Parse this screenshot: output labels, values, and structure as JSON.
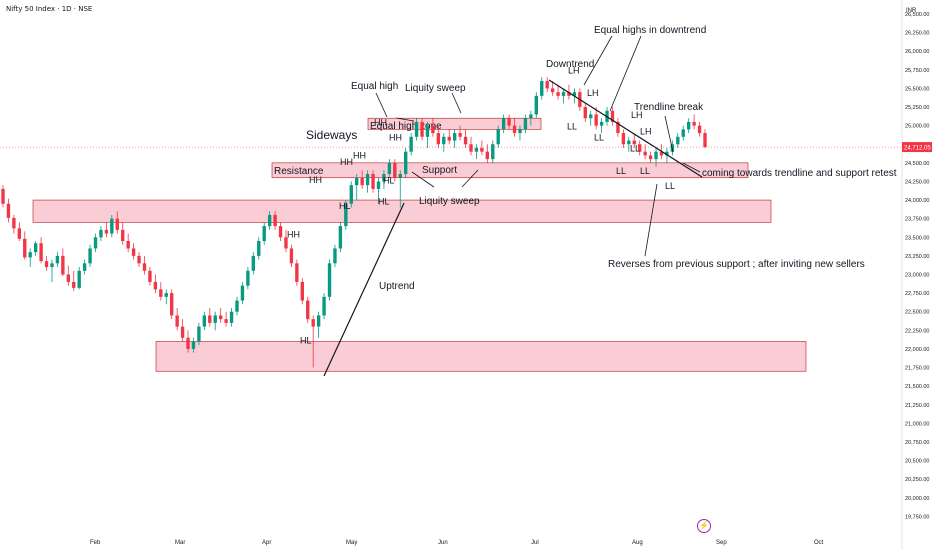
{
  "title": "Nifty 50 Index · 1D · NSE",
  "currency": "INR",
  "last_price_label": "24,712.05",
  "colors": {
    "up": "#089981",
    "down": "#f23645",
    "zone_fill": "#f8bbc8",
    "zone_stroke": "#b71c1c",
    "price_tag": "#f23645"
  },
  "logo_icon": "tradingview-flash-icon",
  "chart_data": {
    "type": "candlestick",
    "ylim": [
      19500,
      26500
    ],
    "y_ticks": [
      "26,500.00",
      "26,250.00",
      "26,000.00",
      "25,750.00",
      "25,500.00",
      "25,250.00",
      "25,000.00",
      "24,750.00",
      "24,500.00",
      "24,250.00",
      "24,000.00",
      "23,750.00",
      "23,500.00",
      "23,250.00",
      "23,000.00",
      "22,750.00",
      "22,500.00",
      "22,250.00",
      "22,000.00",
      "21,750.00",
      "21,500.00",
      "21,250.00",
      "21,000.00",
      "20,750.00",
      "20,500.00",
      "20,250.00",
      "20,000.00",
      "19,750.00"
    ],
    "x_labels": [
      "Feb",
      "Mar",
      "Apr",
      "May",
      "Jun",
      "Jul",
      "Aug",
      "Sep",
      "Oct"
    ],
    "last_price": 24712.05,
    "candles": [
      {
        "o": 24150,
        "h": 24200,
        "l": 23900,
        "c": 23950
      },
      {
        "o": 23950,
        "h": 24020,
        "l": 23700,
        "c": 23760
      },
      {
        "o": 23760,
        "h": 23800,
        "l": 23550,
        "c": 23620
      },
      {
        "o": 23620,
        "h": 23700,
        "l": 23450,
        "c": 23480
      },
      {
        "o": 23480,
        "h": 23580,
        "l": 23200,
        "c": 23230
      },
      {
        "o": 23230,
        "h": 23350,
        "l": 23100,
        "c": 23300
      },
      {
        "o": 23300,
        "h": 23450,
        "l": 23250,
        "c": 23420
      },
      {
        "o": 23420,
        "h": 23500,
        "l": 23150,
        "c": 23180
      },
      {
        "o": 23180,
        "h": 23250,
        "l": 23050,
        "c": 23100
      },
      {
        "o": 23100,
        "h": 23200,
        "l": 22900,
        "c": 23150
      },
      {
        "o": 23150,
        "h": 23300,
        "l": 23100,
        "c": 23250
      },
      {
        "o": 23250,
        "h": 23350,
        "l": 22980,
        "c": 23000
      },
      {
        "o": 23000,
        "h": 23120,
        "l": 22850,
        "c": 22900
      },
      {
        "o": 22900,
        "h": 23050,
        "l": 22780,
        "c": 22820
      },
      {
        "o": 22820,
        "h": 23100,
        "l": 22800,
        "c": 23050
      },
      {
        "o": 23050,
        "h": 23200,
        "l": 23000,
        "c": 23150
      },
      {
        "o": 23150,
        "h": 23400,
        "l": 23100,
        "c": 23350
      },
      {
        "o": 23350,
        "h": 23550,
        "l": 23300,
        "c": 23500
      },
      {
        "o": 23500,
        "h": 23650,
        "l": 23450,
        "c": 23600
      },
      {
        "o": 23600,
        "h": 23700,
        "l": 23500,
        "c": 23550
      },
      {
        "o": 23550,
        "h": 23800,
        "l": 23500,
        "c": 23750
      },
      {
        "o": 23750,
        "h": 23850,
        "l": 23550,
        "c": 23600
      },
      {
        "o": 23600,
        "h": 23700,
        "l": 23400,
        "c": 23450
      },
      {
        "o": 23450,
        "h": 23550,
        "l": 23300,
        "c": 23350
      },
      {
        "o": 23350,
        "h": 23420,
        "l": 23200,
        "c": 23250
      },
      {
        "o": 23250,
        "h": 23300,
        "l": 23100,
        "c": 23150
      },
      {
        "o": 23150,
        "h": 23250,
        "l": 23000,
        "c": 23050
      },
      {
        "o": 23050,
        "h": 23100,
        "l": 22850,
        "c": 22900
      },
      {
        "o": 22900,
        "h": 23000,
        "l": 22750,
        "c": 22800
      },
      {
        "o": 22800,
        "h": 22900,
        "l": 22650,
        "c": 22700
      },
      {
        "o": 22700,
        "h": 22800,
        "l": 22600,
        "c": 22750
      },
      {
        "o": 22750,
        "h": 22800,
        "l": 22400,
        "c": 22450
      },
      {
        "o": 22450,
        "h": 22550,
        "l": 22250,
        "c": 22300
      },
      {
        "o": 22300,
        "h": 22400,
        "l": 22100,
        "c": 22150
      },
      {
        "o": 22150,
        "h": 22250,
        "l": 21950,
        "c": 22000
      },
      {
        "o": 22000,
        "h": 22150,
        "l": 21950,
        "c": 22100
      },
      {
        "o": 22100,
        "h": 22350,
        "l": 22050,
        "c": 22300
      },
      {
        "o": 22300,
        "h": 22500,
        "l": 22250,
        "c": 22450
      },
      {
        "o": 22450,
        "h": 22550,
        "l": 22300,
        "c": 22350
      },
      {
        "o": 22350,
        "h": 22500,
        "l": 22250,
        "c": 22450
      },
      {
        "o": 22450,
        "h": 22550,
        "l": 22350,
        "c": 22400
      },
      {
        "o": 22400,
        "h": 22500,
        "l": 22300,
        "c": 22350
      },
      {
        "o": 22350,
        "h": 22550,
        "l": 22300,
        "c": 22500
      },
      {
        "o": 22500,
        "h": 22700,
        "l": 22450,
        "c": 22650
      },
      {
        "o": 22650,
        "h": 22900,
        "l": 22600,
        "c": 22850
      },
      {
        "o": 22850,
        "h": 23100,
        "l": 22800,
        "c": 23050
      },
      {
        "o": 23050,
        "h": 23300,
        "l": 23000,
        "c": 23250
      },
      {
        "o": 23250,
        "h": 23500,
        "l": 23200,
        "c": 23450
      },
      {
        "o": 23450,
        "h": 23700,
        "l": 23400,
        "c": 23650
      },
      {
        "o": 23650,
        "h": 23850,
        "l": 23600,
        "c": 23800
      },
      {
        "o": 23800,
        "h": 23850,
        "l": 23600,
        "c": 23650
      },
      {
        "o": 23650,
        "h": 23700,
        "l": 23450,
        "c": 23500
      },
      {
        "o": 23500,
        "h": 23600,
        "l": 23300,
        "c": 23350
      },
      {
        "o": 23350,
        "h": 23400,
        "l": 23100,
        "c": 23150
      },
      {
        "o": 23150,
        "h": 23200,
        "l": 22850,
        "c": 22900
      },
      {
        "o": 22900,
        "h": 22950,
        "l": 22600,
        "c": 22650
      },
      {
        "o": 22650,
        "h": 22700,
        "l": 22350,
        "c": 22400
      },
      {
        "o": 22400,
        "h": 22450,
        "l": 21750,
        "c": 22300
      },
      {
        "o": 22300,
        "h": 22500,
        "l": 22150,
        "c": 22450
      },
      {
        "o": 22450,
        "h": 22750,
        "l": 22400,
        "c": 22700
      },
      {
        "o": 22700,
        "h": 23200,
        "l": 22650,
        "c": 23150
      },
      {
        "o": 23150,
        "h": 23400,
        "l": 23100,
        "c": 23350
      },
      {
        "o": 23350,
        "h": 23700,
        "l": 23300,
        "c": 23650
      },
      {
        "o": 23650,
        "h": 24000,
        "l": 23600,
        "c": 23950
      },
      {
        "o": 23950,
        "h": 24250,
        "l": 23900,
        "c": 24200
      },
      {
        "o": 24200,
        "h": 24350,
        "l": 24000,
        "c": 24300
      },
      {
        "o": 24300,
        "h": 24400,
        "l": 24150,
        "c": 24200
      },
      {
        "o": 24200,
        "h": 24400,
        "l": 24100,
        "c": 24350
      },
      {
        "o": 24350,
        "h": 24400,
        "l": 24100,
        "c": 24150
      },
      {
        "o": 24150,
        "h": 24300,
        "l": 23950,
        "c": 24250
      },
      {
        "o": 24250,
        "h": 24400,
        "l": 24150,
        "c": 24350
      },
      {
        "o": 24350,
        "h": 24550,
        "l": 24300,
        "c": 24500
      },
      {
        "o": 24500,
        "h": 24550,
        "l": 24250,
        "c": 24300
      },
      {
        "o": 24300,
        "h": 24400,
        "l": 23900,
        "c": 24350
      },
      {
        "o": 24350,
        "h": 24700,
        "l": 24300,
        "c": 24650
      },
      {
        "o": 24650,
        "h": 24900,
        "l": 24600,
        "c": 24850
      },
      {
        "o": 24850,
        "h": 25100,
        "l": 24800,
        "c": 25050
      },
      {
        "o": 25050,
        "h": 25100,
        "l": 24800,
        "c": 24850
      },
      {
        "o": 24850,
        "h": 25050,
        "l": 24700,
        "c": 25000
      },
      {
        "o": 25000,
        "h": 25100,
        "l": 24850,
        "c": 24900
      },
      {
        "o": 24900,
        "h": 25000,
        "l": 24700,
        "c": 24750
      },
      {
        "o": 24750,
        "h": 24900,
        "l": 24650,
        "c": 24850
      },
      {
        "o": 24850,
        "h": 24950,
        "l": 24750,
        "c": 24800
      },
      {
        "o": 24800,
        "h": 24950,
        "l": 24700,
        "c": 24900
      },
      {
        "o": 24900,
        "h": 25000,
        "l": 24800,
        "c": 24850
      },
      {
        "o": 24850,
        "h": 24950,
        "l": 24700,
        "c": 24750
      },
      {
        "o": 24750,
        "h": 24850,
        "l": 24600,
        "c": 24650
      },
      {
        "o": 24650,
        "h": 24750,
        "l": 24550,
        "c": 24700
      },
      {
        "o": 24700,
        "h": 24800,
        "l": 24600,
        "c": 24650
      },
      {
        "o": 24650,
        "h": 24750,
        "l": 24500,
        "c": 24550
      },
      {
        "o": 24550,
        "h": 24800,
        "l": 24500,
        "c": 24750
      },
      {
        "o": 24750,
        "h": 25000,
        "l": 24700,
        "c": 24950
      },
      {
        "o": 24950,
        "h": 25150,
        "l": 24900,
        "c": 25100
      },
      {
        "o": 25100,
        "h": 25150,
        "l": 24950,
        "c": 25000
      },
      {
        "o": 25000,
        "h": 25100,
        "l": 24850,
        "c": 24900
      },
      {
        "o": 24900,
        "h": 25000,
        "l": 24800,
        "c": 24950
      },
      {
        "o": 24950,
        "h": 25150,
        "l": 24900,
        "c": 25100
      },
      {
        "o": 25100,
        "h": 25200,
        "l": 25000,
        "c": 25150
      },
      {
        "o": 25150,
        "h": 25450,
        "l": 25100,
        "c": 25400
      },
      {
        "o": 25400,
        "h": 25650,
        "l": 25350,
        "c": 25600
      },
      {
        "o": 25600,
        "h": 25650,
        "l": 25450,
        "c": 25500
      },
      {
        "o": 25500,
        "h": 25600,
        "l": 25400,
        "c": 25450
      },
      {
        "o": 25450,
        "h": 25550,
        "l": 25350,
        "c": 25400
      },
      {
        "o": 25400,
        "h": 25500,
        "l": 25300,
        "c": 25450
      },
      {
        "o": 25450,
        "h": 25550,
        "l": 25350,
        "c": 25400
      },
      {
        "o": 25400,
        "h": 25500,
        "l": 25300,
        "c": 25450
      },
      {
        "o": 25450,
        "h": 25500,
        "l": 25200,
        "c": 25250
      },
      {
        "o": 25250,
        "h": 25300,
        "l": 25050,
        "c": 25100
      },
      {
        "o": 25100,
        "h": 25200,
        "l": 25000,
        "c": 25150
      },
      {
        "o": 25150,
        "h": 25250,
        "l": 24950,
        "c": 25000
      },
      {
        "o": 25000,
        "h": 25100,
        "l": 24900,
        "c": 25050
      },
      {
        "o": 25050,
        "h": 25250,
        "l": 25000,
        "c": 25200
      },
      {
        "o": 25200,
        "h": 25250,
        "l": 25000,
        "c": 25050
      },
      {
        "o": 25050,
        "h": 25100,
        "l": 24850,
        "c": 24900
      },
      {
        "o": 24900,
        "h": 24950,
        "l": 24700,
        "c": 24750
      },
      {
        "o": 24750,
        "h": 24850,
        "l": 24650,
        "c": 24800
      },
      {
        "o": 24800,
        "h": 24900,
        "l": 24700,
        "c": 24750
      },
      {
        "o": 24750,
        "h": 24800,
        "l": 24600,
        "c": 24650
      },
      {
        "o": 24650,
        "h": 24750,
        "l": 24550,
        "c": 24600
      },
      {
        "o": 24600,
        "h": 24650,
        "l": 24500,
        "c": 24550
      },
      {
        "o": 24550,
        "h": 24700,
        "l": 24450,
        "c": 24650
      },
      {
        "o": 24650,
        "h": 24750,
        "l": 24550,
        "c": 24600
      },
      {
        "o": 24600,
        "h": 24700,
        "l": 24500,
        "c": 24650
      },
      {
        "o": 24650,
        "h": 24800,
        "l": 24600,
        "c": 24750
      },
      {
        "o": 24750,
        "h": 24900,
        "l": 24700,
        "c": 24850
      },
      {
        "o": 24850,
        "h": 25000,
        "l": 24800,
        "c": 24950
      },
      {
        "o": 24950,
        "h": 25100,
        "l": 24900,
        "c": 25050
      },
      {
        "o": 25050,
        "h": 25150,
        "l": 24950,
        "c": 25000
      },
      {
        "o": 25000,
        "h": 25050,
        "l": 24850,
        "c": 24900
      },
      {
        "o": 24900,
        "h": 24950,
        "l": 24700,
        "c": 24712
      }
    ],
    "zones": [
      {
        "label": "Resistance",
        "y_top": 24500,
        "y_bottom": 24300
      },
      {
        "label": "Equal high zone",
        "y_top": 25100,
        "y_bottom": 24950
      },
      {
        "label": "",
        "y_top": 24000,
        "y_bottom": 23700
      },
      {
        "label": "",
        "y_top": 22100,
        "y_bottom": 21700
      }
    ]
  },
  "annotations": {
    "equal_highs_downtrend": "Equal highs in downtrend",
    "downtrend": "Downtrend",
    "equal_high": "Equal high",
    "liquidity_sweep_top": "Liquity sweep",
    "trendline_break": "Trendline break",
    "sideways": "Sideways",
    "resistance": "Resistance",
    "support": "Support",
    "liquidity_sweep_bottom": "Liquity sweep",
    "coming_towards": "coming towards trendline and support  retest",
    "reverses": "Reverses from previous support ; after inviting new sellers",
    "uptrend": "Uptrend",
    "swing_labels": [
      {
        "text": "LH",
        "price": 25700,
        "x": 568
      },
      {
        "text": "LH",
        "price": 25400,
        "x": 587
      },
      {
        "text": "LH",
        "price": 25100,
        "x": 631
      },
      {
        "text": "LH",
        "price": 24880,
        "x": 640
      },
      {
        "text": "LL",
        "price": 24950,
        "x": 567
      },
      {
        "text": "LL",
        "price": 24800,
        "x": 594
      },
      {
        "text": "LL",
        "price": 24650,
        "x": 630
      },
      {
        "text": "LL",
        "price": 24350,
        "x": 616
      },
      {
        "text": "LL",
        "price": 24350,
        "x": 640
      },
      {
        "text": "LL",
        "price": 24150,
        "x": 665
      },
      {
        "text": "HH",
        "price": 25000,
        "x": 374
      },
      {
        "text": "HH",
        "price": 24800,
        "x": 389
      },
      {
        "text": "HH",
        "price": 24560,
        "x": 353
      },
      {
        "text": "HH",
        "price": 24470,
        "x": 340
      },
      {
        "text": "HH",
        "price": 24230,
        "x": 309
      },
      {
        "text": "HH",
        "price": 23500,
        "x": 287
      },
      {
        "text": "HL",
        "price": 24220,
        "x": 383
      },
      {
        "text": "HL",
        "price": 23880,
        "x": 339
      },
      {
        "text": "HL",
        "price": 23940,
        "x": 378
      },
      {
        "text": "HL",
        "price": 22070,
        "x": 300
      }
    ]
  }
}
